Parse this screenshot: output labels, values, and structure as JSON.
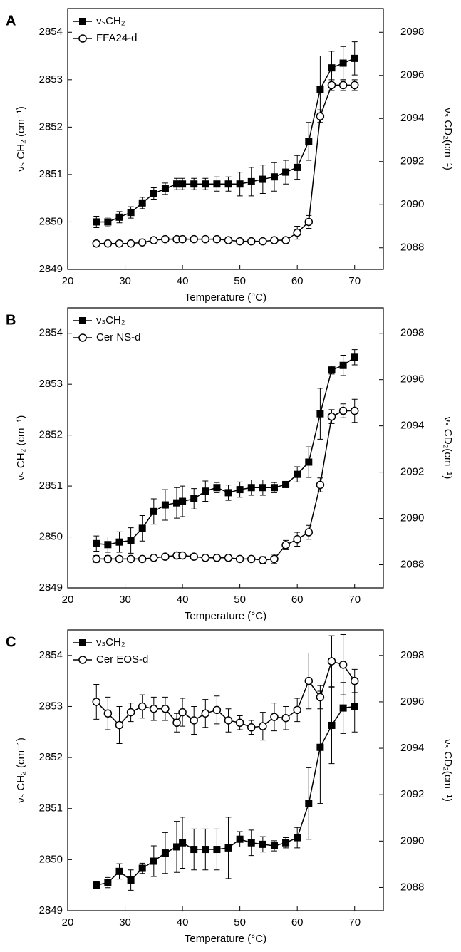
{
  "chart_data": [
    {
      "type": "line",
      "panel": "A",
      "xlabel": "Temperature (°C)",
      "ylabel": "νₛ CH₂ (cm⁻¹)",
      "y2label": "νₛ CD₂(cm⁻¹)",
      "xlim": [
        20,
        75
      ],
      "xticks": [
        20,
        30,
        40,
        50,
        60,
        70
      ],
      "ylim": [
        2849,
        2854.5
      ],
      "yticks": [
        2849,
        2850,
        2851,
        2852,
        2853,
        2854
      ],
      "y2lim": [
        2087,
        2099.1
      ],
      "y2ticks": [
        2088,
        2090,
        2092,
        2094,
        2096,
        2098
      ],
      "x": [
        25,
        27,
        29,
        31,
        33,
        35,
        37,
        39,
        40,
        42,
        44,
        46,
        48,
        50,
        52,
        54,
        56,
        58,
        60,
        62,
        64,
        66,
        68,
        70
      ],
      "series": [
        {
          "name": "νₛCH₂",
          "color": "#000000",
          "marker": "square",
          "values": [
            2850.0,
            2850.0,
            2850.1,
            2850.2,
            2850.4,
            2850.6,
            2850.7,
            2850.8,
            2850.8,
            2850.8,
            2850.8,
            2850.8,
            2850.8,
            2850.8,
            2850.85,
            2850.9,
            2850.95,
            2851.05,
            2851.15,
            2851.7,
            2852.8,
            2853.25,
            2853.35,
            2853.45
          ],
          "errors": [
            0.12,
            0.1,
            0.12,
            0.12,
            0.12,
            0.12,
            0.12,
            0.12,
            0.12,
            0.12,
            0.12,
            0.15,
            0.15,
            0.25,
            0.3,
            0.3,
            0.3,
            0.25,
            0.25,
            0.4,
            0.7,
            0.35,
            0.35,
            0.35
          ]
        },
        {
          "name": "FFA24-d",
          "color": "#000000",
          "marker": "circle",
          "axis": "y2",
          "values": [
            2088.2,
            2088.2,
            2088.2,
            2088.2,
            2088.25,
            2088.35,
            2088.4,
            2088.4,
            2088.4,
            2088.4,
            2088.4,
            2088.4,
            2088.35,
            2088.3,
            2088.3,
            2088.3,
            2088.35,
            2088.35,
            2088.7,
            2089.2,
            2094.1,
            2095.55,
            2095.55,
            2095.55
          ],
          "errors": [
            0.1,
            0.1,
            0.1,
            0.1,
            0.1,
            0.1,
            0.1,
            0.1,
            0.1,
            0.1,
            0.1,
            0.1,
            0.1,
            0.1,
            0.1,
            0.1,
            0.1,
            0.1,
            0.3,
            0.3,
            0.3,
            0.25,
            0.25,
            0.25
          ]
        }
      ]
    },
    {
      "type": "line",
      "panel": "B",
      "xlabel": "Temperature (°C)",
      "ylabel": "νₛ CH₂ (cm⁻¹)",
      "y2label": "νₛ CD₂(cm⁻¹)",
      "xlim": [
        20,
        75
      ],
      "xticks": [
        20,
        30,
        40,
        50,
        60,
        70
      ],
      "ylim": [
        2849,
        2854.5
      ],
      "yticks": [
        2849,
        2850,
        2851,
        2852,
        2853,
        2854
      ],
      "y2lim": [
        2087,
        2099.1
      ],
      "y2ticks": [
        2088,
        2090,
        2092,
        2094,
        2096,
        2098
      ],
      "x": [
        25,
        27,
        29,
        31,
        33,
        35,
        37,
        39,
        40,
        42,
        44,
        46,
        48,
        50,
        52,
        54,
        56,
        58,
        60,
        62,
        64,
        66,
        68,
        70
      ],
      "series": [
        {
          "name": "νₛCH₂",
          "color": "#000000",
          "marker": "square",
          "values": [
            2849.87,
            2849.85,
            2849.9,
            2849.93,
            2850.17,
            2850.5,
            2850.63,
            2850.67,
            2850.7,
            2850.75,
            2850.9,
            2850.97,
            2850.87,
            2850.93,
            2850.97,
            2850.97,
            2850.97,
            2851.03,
            2851.23,
            2851.47,
            2852.42,
            2853.28,
            2853.37,
            2853.53
          ],
          "errors": [
            0.15,
            0.15,
            0.2,
            0.25,
            0.25,
            0.25,
            0.3,
            0.3,
            0.3,
            0.2,
            0.2,
            0.1,
            0.15,
            0.15,
            0.15,
            0.15,
            0.1,
            0.05,
            0.15,
            0.3,
            0.5,
            0.08,
            0.2,
            0.15
          ]
        },
        {
          "name": "Cer NS-d",
          "color": "#000000",
          "marker": "circle",
          "axis": "y2",
          "values": [
            2088.25,
            2088.25,
            2088.25,
            2088.25,
            2088.25,
            2088.3,
            2088.35,
            2088.4,
            2088.4,
            2088.35,
            2088.3,
            2088.3,
            2088.3,
            2088.25,
            2088.25,
            2088.2,
            2088.25,
            2088.85,
            2089.1,
            2089.4,
            2091.45,
            2094.4,
            2094.65,
            2094.65
          ],
          "errors": [
            0.15,
            0.15,
            0.1,
            0.1,
            0.1,
            0.1,
            0.1,
            0.1,
            0.1,
            0.1,
            0.1,
            0.1,
            0.1,
            0.1,
            0.1,
            0.15,
            0.2,
            0.2,
            0.3,
            0.3,
            0.3,
            0.3,
            0.3,
            0.5
          ]
        }
      ]
    },
    {
      "type": "line",
      "panel": "C",
      "xlabel": "Temperature (°C)",
      "ylabel": "νₛ CH₂ (cm⁻¹)",
      "y2label": "νₛ CD₂(cm⁻¹)",
      "xlim": [
        20,
        75
      ],
      "xticks": [
        20,
        30,
        40,
        50,
        60,
        70
      ],
      "ylim": [
        2849,
        2854.5
      ],
      "yticks": [
        2849,
        2850,
        2851,
        2852,
        2853,
        2854
      ],
      "y2lim": [
        2087,
        2099.1
      ],
      "y2ticks": [
        2088,
        2090,
        2092,
        2094,
        2096,
        2098
      ],
      "x": [
        25,
        27,
        29,
        31,
        33,
        35,
        37,
        39,
        40,
        42,
        44,
        46,
        48,
        50,
        52,
        54,
        56,
        58,
        60,
        62,
        64,
        66,
        68,
        70
      ],
      "series": [
        {
          "name": "νₛCH₂",
          "color": "#000000",
          "marker": "square",
          "values": [
            2849.5,
            2849.55,
            2849.77,
            2849.6,
            2849.83,
            2849.97,
            2850.13,
            2850.25,
            2850.33,
            2850.2,
            2850.2,
            2850.2,
            2850.23,
            2850.4,
            2850.33,
            2850.3,
            2850.27,
            2850.33,
            2850.43,
            2851.1,
            2852.2,
            2852.63,
            2852.97,
            2853.0
          ],
          "errors": [
            0.07,
            0.1,
            0.15,
            0.2,
            0.1,
            0.3,
            0.4,
            0.5,
            0.5,
            0.4,
            0.4,
            0.4,
            0.6,
            0.15,
            0.25,
            0.15,
            0.1,
            0.1,
            0.2,
            0.7,
            1.1,
            0.75,
            0.5,
            0.5
          ]
        },
        {
          "name": "Cer EOS-d",
          "color": "#000000",
          "marker": "circle",
          "axis": "y2",
          "values": [
            2096.0,
            2095.5,
            2095.0,
            2095.55,
            2095.8,
            2095.7,
            2095.7,
            2095.1,
            2095.55,
            2095.2,
            2095.5,
            2095.65,
            2095.2,
            2095.1,
            2094.9,
            2094.95,
            2095.35,
            2095.3,
            2095.65,
            2096.9,
            2096.2,
            2097.75,
            2097.6,
            2096.9
          ],
          "errors": [
            0.75,
            0.7,
            0.8,
            0.4,
            0.5,
            0.5,
            0.5,
            0.4,
            0.6,
            0.6,
            0.6,
            0.6,
            0.5,
            0.3,
            0.3,
            0.6,
            0.6,
            0.5,
            0.5,
            1.2,
            0.5,
            1.1,
            1.3,
            0.5
          ]
        }
      ]
    }
  ]
}
